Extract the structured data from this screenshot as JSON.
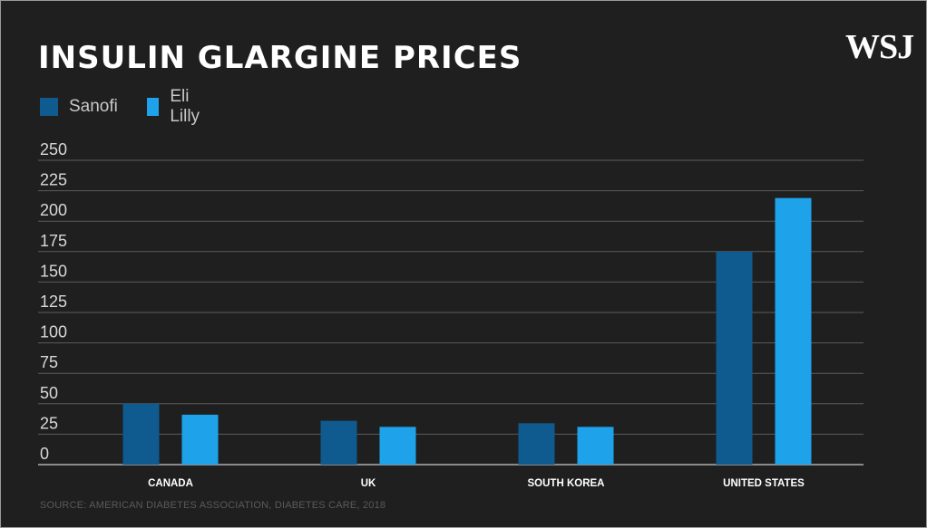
{
  "title": "INSULIN GLARGINE PRICES",
  "brand": "WSJ",
  "source": "SOURCE: AMERICAN DIABETES ASSOCIATION, DIABETES CARE, 2018",
  "colors": {
    "background": "#1f1f20",
    "sanofi": "#0f5a8e",
    "eli_lilly": "#1ea3ea",
    "grid": "#5c5c5c"
  },
  "chart_data": {
    "type": "bar",
    "title": "INSULIN GLARGINE PRICES",
    "categories": [
      "CANADA",
      "UK",
      "SOUTH KOREA",
      "UNITED STATES"
    ],
    "series": [
      {
        "name": "Sanofi",
        "values": [
          50,
          36,
          34,
          175
        ]
      },
      {
        "name": "Eli Lilly",
        "values": [
          41,
          31,
          31,
          219
        ]
      }
    ],
    "ylim": [
      0,
      250
    ],
    "yticks": [
      0,
      25,
      50,
      75,
      100,
      125,
      150,
      175,
      200,
      225,
      250
    ],
    "grid": true,
    "legend": "top-left",
    "xlabel": "",
    "ylabel": ""
  }
}
